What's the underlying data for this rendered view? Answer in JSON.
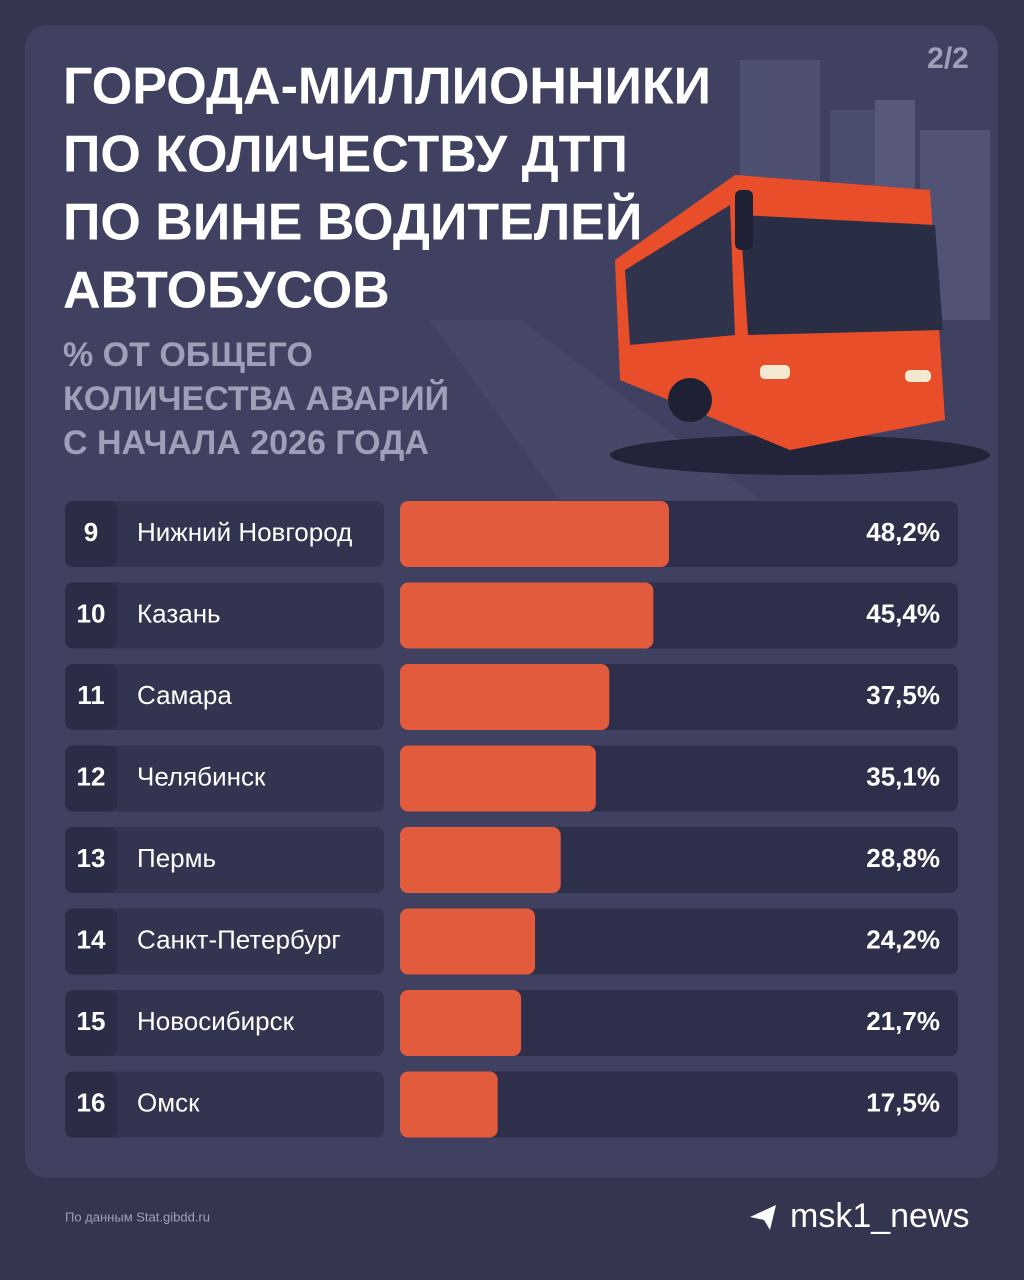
{
  "page_label": "2/2",
  "source": "По данным Stat.gibdd.ru",
  "brand": "msk1_news",
  "chart_data": {
    "type": "bar",
    "orientation": "horizontal",
    "title_lines": [
      "ГОРОДА-МИЛЛИОННИКИ",
      "ПО КОЛИЧЕСТВУ ДТП",
      "ПО ВИНЕ ВОДИТЕЛЕЙ",
      "АВТОБУСОВ"
    ],
    "subtitle_lines": [
      "% ОТ ОБЩЕГО",
      "КОЛИЧЕСТВА АВАРИЙ",
      "С НАЧАЛА 2026 ГОДА"
    ],
    "ranks": [
      9,
      10,
      11,
      12,
      13,
      14,
      15,
      16
    ],
    "categories": [
      "Нижний Новгород",
      "Казань",
      "Самара",
      "Челябинск",
      "Пермь",
      "Санкт-Петербург",
      "Новосибирск",
      "Омск"
    ],
    "values": [
      48.2,
      45.4,
      37.5,
      35.1,
      28.8,
      24.2,
      21.7,
      17.5
    ],
    "value_labels": [
      "48,2%",
      "45,4%",
      "37,5%",
      "35,1%",
      "28,8%",
      "24,2%",
      "21,7%",
      "17,5%"
    ],
    "xlim": [
      0,
      100
    ],
    "color": "#e35b3d"
  }
}
